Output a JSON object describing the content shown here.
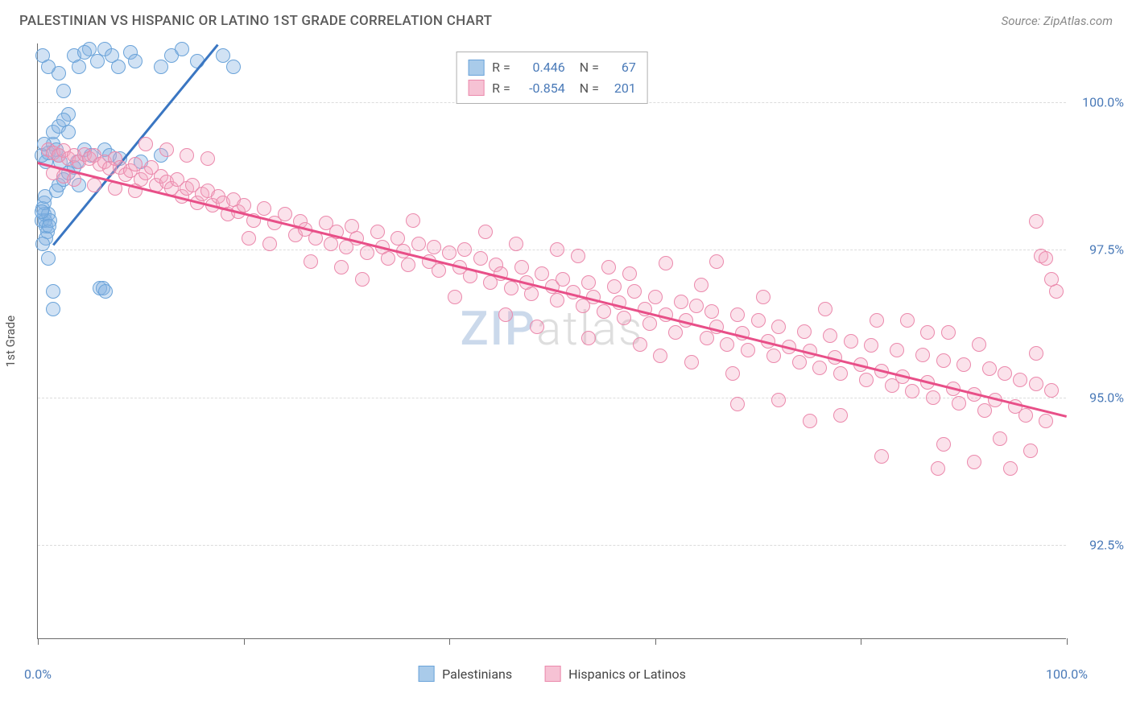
{
  "header": {
    "title": "PALESTINIAN VS HISPANIC OR LATINO 1ST GRADE CORRELATION CHART",
    "source": "Source: ZipAtlas.com"
  },
  "chart": {
    "type": "scatter",
    "y_axis_label": "1st Grade",
    "xlim": [
      0,
      100
    ],
    "ylim": [
      90.9,
      101.0
    ],
    "x_ticks": [
      0,
      20,
      40,
      60,
      80,
      100
    ],
    "x_tick_labels": [
      "0.0%",
      "",
      "",
      "",
      "",
      "100.0%"
    ],
    "y_grid": [
      92.5,
      95.0,
      97.5,
      100.0
    ],
    "y_tick_labels": [
      "92.5%",
      "95.0%",
      "97.5%",
      "100.0%"
    ],
    "background_color": "#ffffff",
    "grid_color": "#dcdcdc",
    "axis_color": "#6a6a6a",
    "tick_label_color": "#4a7ab8",
    "marker_radius": 9,
    "marker_stroke_width": 1.5,
    "series": [
      {
        "name": "Palestinians",
        "color_fill": "rgba(133, 179, 227, 0.38)",
        "color_stroke": "#6aa3d9",
        "swatch_fill": "#a9cbea",
        "swatch_stroke": "#6aa3d9",
        "R": "0.446",
        "N": "67",
        "trend": {
          "x1": 1.5,
          "y1": 97.6,
          "x2": 17.5,
          "y2": 101.0,
          "color": "#3a76c2",
          "width": 2.5
        },
        "points": [
          [
            0.4,
            98.0
          ],
          [
            0.6,
            98.1
          ],
          [
            0.8,
            97.9
          ],
          [
            0.5,
            98.2
          ],
          [
            0.7,
            98.0
          ],
          [
            1.0,
            98.1
          ],
          [
            0.9,
            97.8
          ],
          [
            0.6,
            98.3
          ],
          [
            0.8,
            97.7
          ],
          [
            1.2,
            98.0
          ],
          [
            0.5,
            97.6
          ],
          [
            0.7,
            98.4
          ],
          [
            1.1,
            97.9
          ],
          [
            0.4,
            98.15
          ],
          [
            3.5,
            100.8
          ],
          [
            4.0,
            100.6
          ],
          [
            5.0,
            100.9
          ],
          [
            4.5,
            100.85
          ],
          [
            5.8,
            100.7
          ],
          [
            6.5,
            100.9
          ],
          [
            7.2,
            100.8
          ],
          [
            7.8,
            100.6
          ],
          [
            9.0,
            100.85
          ],
          [
            9.5,
            100.7
          ],
          [
            12.0,
            100.6
          ],
          [
            13.0,
            100.8
          ],
          [
            14.0,
            100.9
          ],
          [
            15.5,
            100.7
          ],
          [
            18.0,
            100.8
          ],
          [
            19.0,
            100.6
          ],
          [
            2.0,
            100.5
          ],
          [
            2.5,
            100.2
          ],
          [
            3.0,
            99.8
          ],
          [
            1.5,
            99.3
          ],
          [
            0.8,
            99.0
          ],
          [
            1.0,
            99.15
          ],
          [
            1.8,
            99.2
          ],
          [
            2.2,
            99.0
          ],
          [
            0.4,
            99.1
          ],
          [
            0.6,
            99.3
          ],
          [
            1.5,
            99.5
          ],
          [
            2.0,
            99.6
          ],
          [
            2.5,
            99.7
          ],
          [
            3.0,
            99.5
          ],
          [
            2.0,
            99.1
          ],
          [
            4.5,
            99.2
          ],
          [
            3.8,
            99.0
          ],
          [
            5.2,
            99.1
          ],
          [
            6.5,
            99.2
          ],
          [
            7.0,
            99.1
          ],
          [
            8.0,
            99.05
          ],
          [
            10.0,
            99.0
          ],
          [
            12.0,
            99.1
          ],
          [
            1.0,
            97.35
          ],
          [
            1.5,
            96.8
          ],
          [
            6.0,
            96.85
          ],
          [
            6.3,
            96.85
          ],
          [
            6.6,
            96.8
          ],
          [
            1.5,
            96.5
          ],
          [
            1.8,
            98.5
          ],
          [
            2.0,
            98.6
          ],
          [
            2.5,
            98.7
          ],
          [
            0.5,
            100.8
          ],
          [
            1.0,
            100.6
          ],
          [
            3.0,
            98.8
          ],
          [
            3.5,
            98.9
          ],
          [
            4.0,
            98.6
          ]
        ]
      },
      {
        "name": "Hispanics or Latinos",
        "color_fill": "rgba(244, 166, 193, 0.32)",
        "color_stroke": "#eb89ac",
        "swatch_fill": "#f6c2d4",
        "swatch_stroke": "#eb89ac",
        "R": "-0.854",
        "N": "201",
        "trend": {
          "x1": 0,
          "y1": 99.0,
          "x2": 100,
          "y2": 94.7,
          "color": "#e84f88",
          "width": 2.5
        },
        "points": [
          [
            1.0,
            99.2
          ],
          [
            1.5,
            99.15
          ],
          [
            2.0,
            99.1
          ],
          [
            2.5,
            99.18
          ],
          [
            3.0,
            99.05
          ],
          [
            3.5,
            99.1
          ],
          [
            4.0,
            99.0
          ],
          [
            4.5,
            99.12
          ],
          [
            5.0,
            99.05
          ],
          [
            5.5,
            99.1
          ],
          [
            6.0,
            98.95
          ],
          [
            6.5,
            99.0
          ],
          [
            7.0,
            98.88
          ],
          [
            7.5,
            99.05
          ],
          [
            8.0,
            98.9
          ],
          [
            8.5,
            98.78
          ],
          [
            9.0,
            98.85
          ],
          [
            9.5,
            98.95
          ],
          [
            10.0,
            98.7
          ],
          [
            10.5,
            98.8
          ],
          [
            11.0,
            98.9
          ],
          [
            11.5,
            98.6
          ],
          [
            12.0,
            98.75
          ],
          [
            12.5,
            98.65
          ],
          [
            13.0,
            98.55
          ],
          [
            13.5,
            98.7
          ],
          [
            14.0,
            98.4
          ],
          [
            14.5,
            98.55
          ],
          [
            15.0,
            98.6
          ],
          [
            15.5,
            98.3
          ],
          [
            16.0,
            98.45
          ],
          [
            16.5,
            98.5
          ],
          [
            17.0,
            98.25
          ],
          [
            17.5,
            98.4
          ],
          [
            18.0,
            98.3
          ],
          [
            18.5,
            98.1
          ],
          [
            19.0,
            98.35
          ],
          [
            19.5,
            98.15
          ],
          [
            20.0,
            98.25
          ],
          [
            21.0,
            98.0
          ],
          [
            22.0,
            98.2
          ],
          [
            23.0,
            97.95
          ],
          [
            24.0,
            98.1
          ],
          [
            25.0,
            97.75
          ],
          [
            25.5,
            97.98
          ],
          [
            26.0,
            97.85
          ],
          [
            27.0,
            97.7
          ],
          [
            28.0,
            97.95
          ],
          [
            28.5,
            97.6
          ],
          [
            29.0,
            97.8
          ],
          [
            30.0,
            97.55
          ],
          [
            30.5,
            97.9
          ],
          [
            31.0,
            97.7
          ],
          [
            32.0,
            97.45
          ],
          [
            33.0,
            97.8
          ],
          [
            33.5,
            97.55
          ],
          [
            34.0,
            97.35
          ],
          [
            35.0,
            97.7
          ],
          [
            35.5,
            97.48
          ],
          [
            36.0,
            97.25
          ],
          [
            37.0,
            97.6
          ],
          [
            38.0,
            97.3
          ],
          [
            38.5,
            97.55
          ],
          [
            39.0,
            97.15
          ],
          [
            40.0,
            97.45
          ],
          [
            41.0,
            97.2
          ],
          [
            41.5,
            97.5
          ],
          [
            42.0,
            97.05
          ],
          [
            43.0,
            97.35
          ],
          [
            44.0,
            96.95
          ],
          [
            44.5,
            97.25
          ],
          [
            45.0,
            97.1
          ],
          [
            46.0,
            96.85
          ],
          [
            47.0,
            97.2
          ],
          [
            47.5,
            96.95
          ],
          [
            48.0,
            96.75
          ],
          [
            49.0,
            97.1
          ],
          [
            50.0,
            96.88
          ],
          [
            50.5,
            96.65
          ],
          [
            51.0,
            97.0
          ],
          [
            52.0,
            96.78
          ],
          [
            53.0,
            96.55
          ],
          [
            53.5,
            96.95
          ],
          [
            54.0,
            96.7
          ],
          [
            55.0,
            96.45
          ],
          [
            56.0,
            96.88
          ],
          [
            56.5,
            96.6
          ],
          [
            57.0,
            96.35
          ],
          [
            58.0,
            96.8
          ],
          [
            59.0,
            96.5
          ],
          [
            59.5,
            96.25
          ],
          [
            60.0,
            96.7
          ],
          [
            61.0,
            96.4
          ],
          [
            62.0,
            96.1
          ],
          [
            62.5,
            96.62
          ],
          [
            63.0,
            96.3
          ],
          [
            64.0,
            96.55
          ],
          [
            65.0,
            96.0
          ],
          [
            65.5,
            96.45
          ],
          [
            66.0,
            96.2
          ],
          [
            67.0,
            95.9
          ],
          [
            68.0,
            96.4
          ],
          [
            68.5,
            96.08
          ],
          [
            69.0,
            95.8
          ],
          [
            70.0,
            96.3
          ],
          [
            71.0,
            95.95
          ],
          [
            71.5,
            95.7
          ],
          [
            72.0,
            96.2
          ],
          [
            73.0,
            95.85
          ],
          [
            74.0,
            95.6
          ],
          [
            74.5,
            96.12
          ],
          [
            75.0,
            95.78
          ],
          [
            76.0,
            95.5
          ],
          [
            77.0,
            96.05
          ],
          [
            77.5,
            95.68
          ],
          [
            78.0,
            95.4
          ],
          [
            79.0,
            95.95
          ],
          [
            80.0,
            95.55
          ],
          [
            80.5,
            95.3
          ],
          [
            81.0,
            95.88
          ],
          [
            82.0,
            95.45
          ],
          [
            83.0,
            95.2
          ],
          [
            83.5,
            95.8
          ],
          [
            84.0,
            95.35
          ],
          [
            85.0,
            95.1
          ],
          [
            86.0,
            95.72
          ],
          [
            86.5,
            95.25
          ],
          [
            87.0,
            95.0
          ],
          [
            88.0,
            95.62
          ],
          [
            89.0,
            95.15
          ],
          [
            89.5,
            94.9
          ],
          [
            90.0,
            95.55
          ],
          [
            91.0,
            95.05
          ],
          [
            92.0,
            94.78
          ],
          [
            92.5,
            95.48
          ],
          [
            93.0,
            94.95
          ],
          [
            94.0,
            95.4
          ],
          [
            95.0,
            94.85
          ],
          [
            95.5,
            95.3
          ],
          [
            96.0,
            94.7
          ],
          [
            97.0,
            95.22
          ],
          [
            98.0,
            94.6
          ],
          [
            98.5,
            95.12
          ],
          [
            61.0,
            97.28
          ],
          [
            66.0,
            97.3
          ],
          [
            82.0,
            94.0
          ],
          [
            87.5,
            93.8
          ],
          [
            91.0,
            93.9
          ],
          [
            93.5,
            94.3
          ],
          [
            96.5,
            94.1
          ],
          [
            97.0,
            97.98
          ],
          [
            97.5,
            97.4
          ],
          [
            98.0,
            97.35
          ],
          [
            99.0,
            96.8
          ],
          [
            98.5,
            97.0
          ],
          [
            97.0,
            95.75
          ],
          [
            68.0,
            94.88
          ],
          [
            72.0,
            94.95
          ],
          [
            75.0,
            94.6
          ],
          [
            78.0,
            94.7
          ],
          [
            20.5,
            97.7
          ],
          [
            22.5,
            97.6
          ],
          [
            26.5,
            97.3
          ],
          [
            29.5,
            97.2
          ],
          [
            31.5,
            97.0
          ],
          [
            36.5,
            98.0
          ],
          [
            40.5,
            96.7
          ],
          [
            45.5,
            96.4
          ],
          [
            50.5,
            97.5
          ],
          [
            55.5,
            97.2
          ],
          [
            58.5,
            95.9
          ],
          [
            63.5,
            95.6
          ],
          [
            67.5,
            95.4
          ],
          [
            84.5,
            96.3
          ],
          [
            88.5,
            96.1
          ],
          [
            14.5,
            99.1
          ],
          [
            16.5,
            99.05
          ],
          [
            1.5,
            98.8
          ],
          [
            2.5,
            98.75
          ],
          [
            3.5,
            98.7
          ],
          [
            5.5,
            98.6
          ],
          [
            7.5,
            98.55
          ],
          [
            9.5,
            98.5
          ],
          [
            43.5,
            97.8
          ],
          [
            46.5,
            97.6
          ],
          [
            52.5,
            97.4
          ],
          [
            57.5,
            97.1
          ],
          [
            64.5,
            96.9
          ],
          [
            70.5,
            96.7
          ],
          [
            76.5,
            96.5
          ],
          [
            81.5,
            96.3
          ],
          [
            86.5,
            96.1
          ],
          [
            91.5,
            95.9
          ],
          [
            10.5,
            99.3
          ],
          [
            12.5,
            99.2
          ],
          [
            48.5,
            96.2
          ],
          [
            53.5,
            96.0
          ],
          [
            60.5,
            95.7
          ],
          [
            94.5,
            93.8
          ],
          [
            88.0,
            94.2
          ]
        ]
      }
    ]
  },
  "legend_top": {
    "label_R": "R =",
    "label_N": "N =",
    "text_color": "#555555",
    "value_color": "#4a7ab8"
  },
  "watermark": {
    "zip": "ZIP",
    "atlas": "atlas"
  }
}
